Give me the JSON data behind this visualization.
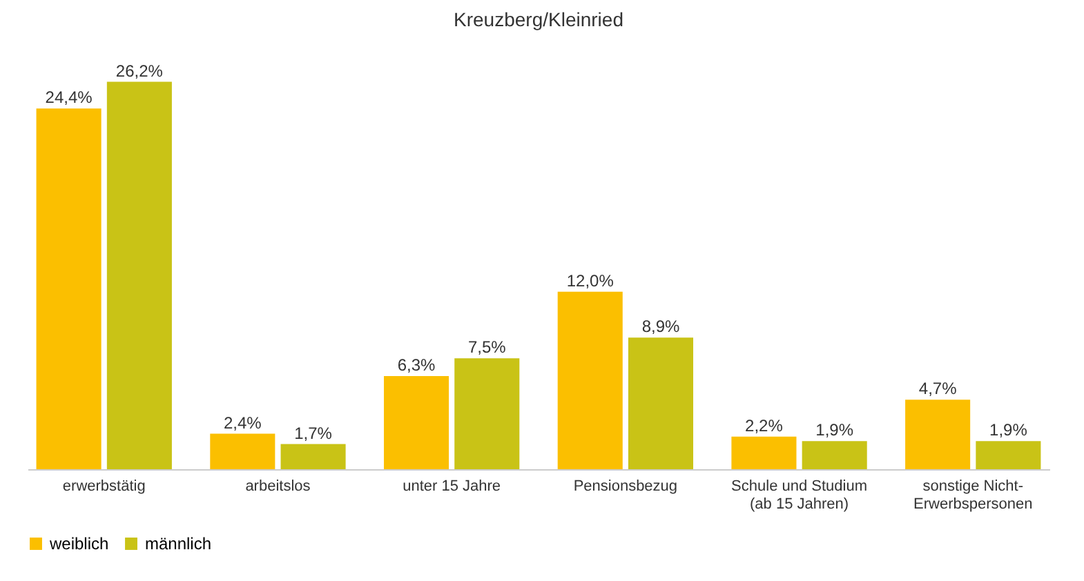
{
  "chart_data": {
    "type": "bar",
    "title": "Kreuzberg/Kleinried",
    "categories": [
      "erwerbstätig",
      "arbeitslos",
      "unter 15 Jahre",
      "Pensionsbezug",
      "Schule und Studium\n(ab 15 Jahren)",
      "sonstige Nicht-\nErwerbspersonen"
    ],
    "series": [
      {
        "name": "weiblich",
        "color": "#fbbf00",
        "values": [
          24.4,
          2.4,
          6.3,
          12.0,
          2.2,
          4.7
        ],
        "value_labels": [
          "24,4%",
          "2,4%",
          "6,3%",
          "12,0%",
          "2,2%",
          "4,7%"
        ]
      },
      {
        "name": "männlich",
        "color": "#c9c316",
        "values": [
          26.2,
          1.7,
          7.5,
          8.9,
          1.9,
          1.9
        ],
        "value_labels": [
          "26,2%",
          "1,7%",
          "7,5%",
          "8,9%",
          "1,9%",
          "1,9%"
        ]
      }
    ],
    "legend": "bottom"
  }
}
